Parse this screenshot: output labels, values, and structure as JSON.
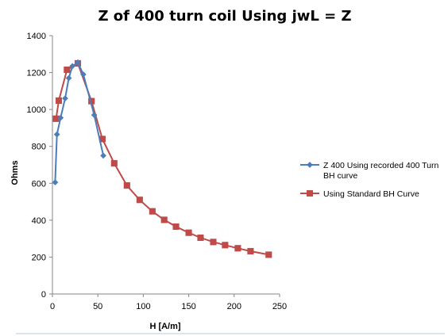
{
  "chart_data": {
    "type": "line",
    "title": "Z of 400 turn coil Using jwL = Z",
    "xlabel": "H [A/m]",
    "ylabel": "Ohms",
    "xlim": [
      0,
      250
    ],
    "ylim": [
      0,
      1400
    ],
    "xticks": [
      0,
      50,
      100,
      150,
      200,
      250
    ],
    "yticks": [
      0,
      200,
      400,
      600,
      800,
      1000,
      1200,
      1400
    ],
    "grid": false,
    "legend_position": "right",
    "series": [
      {
        "name": "Z 400 Using recorded 400 Turn BH curve",
        "legend_lines": [
          "Z 400 Using recorded 400 Turn",
          "BH curve"
        ],
        "color": "#4a7ebb",
        "marker": "diamond",
        "points": [
          [
            3,
            605
          ],
          [
            5,
            865
          ],
          [
            9,
            955
          ],
          [
            14,
            1060
          ],
          [
            18,
            1170
          ],
          [
            22,
            1235
          ],
          [
            28,
            1255
          ],
          [
            34,
            1190
          ],
          [
            46,
            970
          ],
          [
            56,
            750
          ]
        ]
      },
      {
        "name": "Using Standard BH Curve",
        "legend_lines": [
          "Using Standard BH Curve"
        ],
        "color": "#be4b48",
        "marker": "square",
        "points": [
          [
            4,
            950
          ],
          [
            7,
            1048
          ],
          [
            16,
            1215
          ],
          [
            28,
            1250
          ],
          [
            43,
            1045
          ],
          [
            55,
            840
          ],
          [
            68,
            708
          ],
          [
            82,
            588
          ],
          [
            96,
            510
          ],
          [
            110,
            448
          ],
          [
            123,
            402
          ],
          [
            136,
            365
          ],
          [
            150,
            332
          ],
          [
            163,
            305
          ],
          [
            177,
            282
          ],
          [
            190,
            265
          ],
          [
            204,
            248
          ],
          [
            218,
            232
          ],
          [
            238,
            213
          ]
        ]
      }
    ]
  }
}
